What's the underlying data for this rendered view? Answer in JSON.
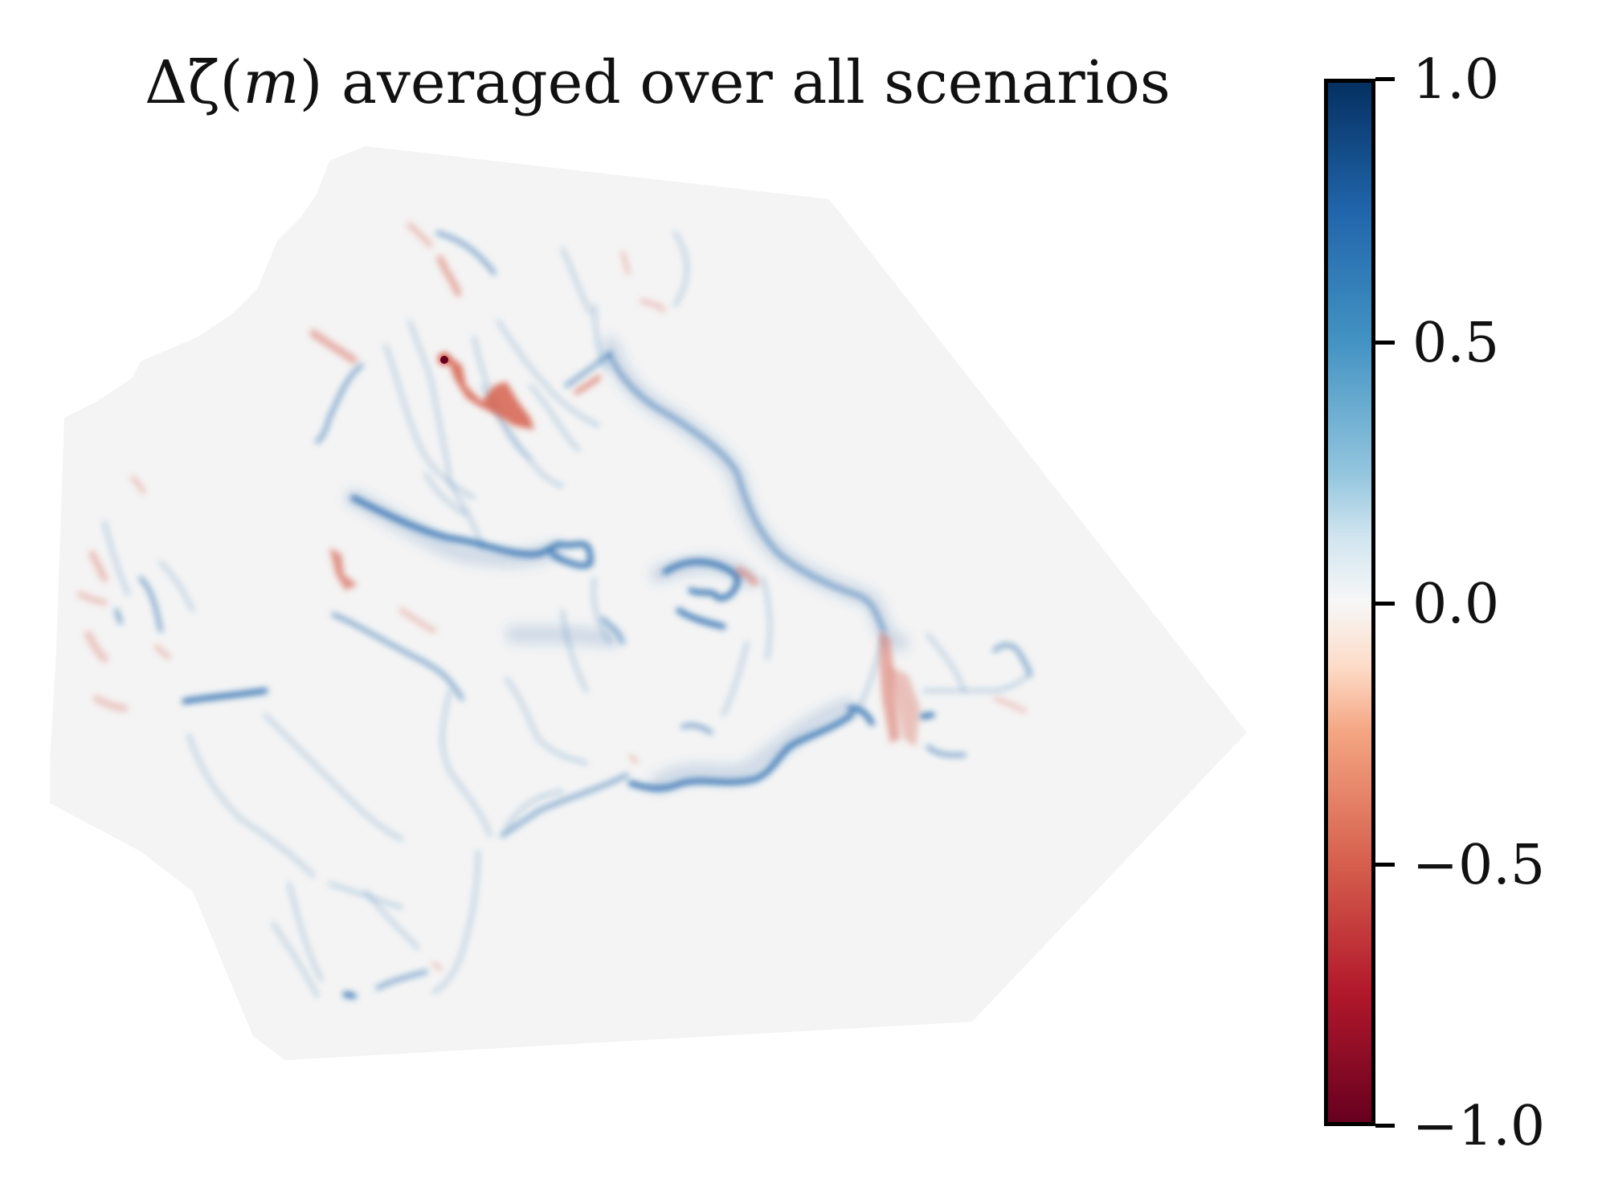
{
  "title": {
    "prefix": "Δζ̄(",
    "var": "m",
    "suffix": ") averaged over all scenarios"
  },
  "colorbar": {
    "colormap": "RdBu",
    "colors": [
      "#053061",
      "#2166ac",
      "#4393c3",
      "#92c5de",
      "#d1e5f0",
      "#f7f7f7",
      "#fddbc7",
      "#f4a582",
      "#d6604d",
      "#b2182b",
      "#67001f"
    ],
    "range": [
      -1.0,
      1.0
    ],
    "tick_values": [
      1.0,
      0.5,
      0.0,
      -0.5,
      -1.0
    ],
    "ticks": [
      "1.0",
      "0.5",
      "0.0",
      "−0.5",
      "−1.0"
    ]
  },
  "map": {
    "background_color": "#f4f4f4",
    "positive_color": "#2166ac",
    "negative_color": "#d6604d"
  }
}
